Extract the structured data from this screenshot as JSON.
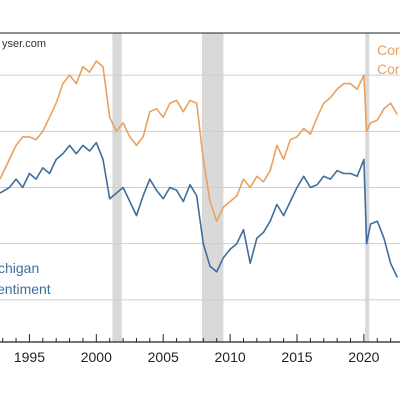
{
  "source_text": "yser.com",
  "chart_data": {
    "type": "line",
    "title": "",
    "xlabel": "",
    "ylabel": "",
    "xlim": [
      1992.8,
      2022.7
    ],
    "ylim": [
      45,
      155
    ],
    "x_ticks": [
      1995,
      2000,
      2005,
      2010,
      2015,
      2020
    ],
    "x_tick_labels": [
      "1995",
      "2000",
      "2005",
      "2010",
      "2015",
      "2020"
    ],
    "grid": "horizontal",
    "recessions": [
      [
        2001.2,
        2001.9
      ],
      [
        2007.9,
        2009.5
      ],
      [
        2020.1,
        2020.4
      ]
    ],
    "colors": {
      "michigan": "#3f6e9e",
      "conference": "#e8a260",
      "recession": "#d9d9d9",
      "grid": "#cfcfcf",
      "frame": "#222222"
    },
    "series": [
      {
        "name": "Michigan Sentiment",
        "label_lines": [
          "chigan",
          "entiment"
        ],
        "color": "#3f6e9e",
        "x": [
          1992.8,
          1993.5,
          1994.0,
          1994.5,
          1995.0,
          1995.5,
          1996.0,
          1996.5,
          1997.0,
          1997.5,
          1998.0,
          1998.5,
          1999.0,
          1999.5,
          2000.0,
          2000.5,
          2001.0,
          2001.5,
          2002.0,
          2002.5,
          2003.0,
          2003.5,
          2004.0,
          2004.5,
          2005.0,
          2005.5,
          2006.0,
          2006.5,
          2007.0,
          2007.5,
          2008.0,
          2008.5,
          2009.0,
          2009.5,
          2010.0,
          2010.5,
          2011.0,
          2011.5,
          2012.0,
          2012.5,
          2013.0,
          2013.5,
          2014.0,
          2014.5,
          2015.0,
          2015.5,
          2016.0,
          2016.5,
          2017.0,
          2017.5,
          2018.0,
          2018.5,
          2019.0,
          2019.5,
          2020.0,
          2020.2,
          2020.5,
          2021.0,
          2021.5,
          2022.0,
          2022.5
        ],
        "values": [
          98,
          100,
          103,
          100,
          105,
          103,
          107,
          105,
          110,
          112,
          115,
          112,
          115,
          113,
          116,
          110,
          96,
          98,
          100,
          95,
          90,
          97,
          103,
          99,
          96,
          100,
          99,
          95,
          101,
          97,
          80,
          72,
          70,
          75,
          78,
          80,
          85,
          73,
          82,
          84,
          88,
          94,
          90,
          95,
          100,
          104,
          100,
          101,
          104,
          103,
          106,
          105,
          105,
          104,
          110,
          80,
          87,
          88,
          82,
          73,
          68
        ]
      },
      {
        "name": "Conference Board Consumer Confidence",
        "label_lines": [
          "Cor",
          "Cor"
        ],
        "color": "#e8a260",
        "x": [
          1992.8,
          1993.5,
          1994.0,
          1994.5,
          1995.0,
          1995.5,
          1996.0,
          1996.5,
          1997.0,
          1997.5,
          1998.0,
          1998.5,
          1999.0,
          1999.5,
          2000.0,
          2000.5,
          2001.0,
          2001.5,
          2002.0,
          2002.5,
          2003.0,
          2003.5,
          2004.0,
          2004.5,
          2005.0,
          2005.5,
          2006.0,
          2006.5,
          2007.0,
          2007.5,
          2008.0,
          2008.5,
          2009.0,
          2009.5,
          2010.0,
          2010.5,
          2011.0,
          2011.5,
          2012.0,
          2012.5,
          2013.0,
          2013.5,
          2014.0,
          2014.5,
          2015.0,
          2015.5,
          2016.0,
          2016.5,
          2017.0,
          2017.5,
          2018.0,
          2018.5,
          2019.0,
          2019.5,
          2020.0,
          2020.2,
          2020.5,
          2021.0,
          2021.5,
          2022.0,
          2022.5
        ],
        "values": [
          103,
          110,
          115,
          118,
          118,
          117,
          120,
          125,
          130,
          137,
          140,
          137,
          143,
          141,
          145,
          143,
          125,
          120,
          123,
          118,
          115,
          118,
          127,
          128,
          125,
          130,
          131,
          127,
          131,
          130,
          110,
          95,
          88,
          93,
          95,
          97,
          103,
          100,
          104,
          102,
          106,
          115,
          110,
          117,
          118,
          121,
          119,
          125,
          130,
          132,
          135,
          137,
          137,
          135,
          140,
          120,
          123,
          124,
          128,
          130,
          126
        ]
      }
    ]
  }
}
